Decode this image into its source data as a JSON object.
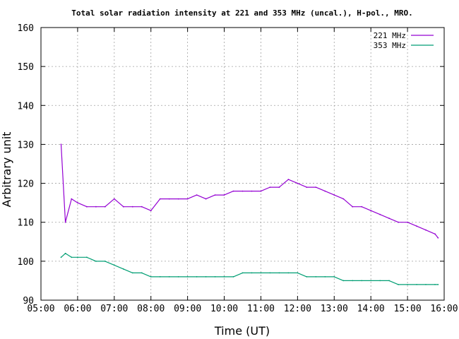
{
  "chart_data": {
    "type": "line",
    "title": "Total solar radiation intensity at 221 and 353 MHz (uncal.), H-pol., MRO.",
    "xlabel": "Time (UT)",
    "ylabel": "Arbitrary unit",
    "xlim": [
      "05:00",
      "16:00"
    ],
    "ylim": [
      90,
      160
    ],
    "x_ticks": [
      "05:00",
      "06:00",
      "07:00",
      "08:00",
      "09:00",
      "10:00",
      "11:00",
      "12:00",
      "13:00",
      "14:00",
      "15:00",
      "16:00"
    ],
    "y_ticks": [
      "90",
      "100",
      "110",
      "120",
      "130",
      "140",
      "150",
      "160"
    ],
    "grid": true,
    "legend_position": "top-right",
    "series": [
      {
        "name": "221 MHz",
        "color": "#9400d3",
        "x": [
          "05:33",
          "05:40",
          "05:50",
          "06:00",
          "06:15",
          "06:30",
          "06:45",
          "07:00",
          "07:15",
          "07:30",
          "07:45",
          "08:00",
          "08:15",
          "08:30",
          "08:45",
          "09:00",
          "09:15",
          "09:30",
          "09:45",
          "10:00",
          "10:15",
          "10:30",
          "10:45",
          "11:00",
          "11:15",
          "11:30",
          "11:45",
          "12:00",
          "12:15",
          "12:30",
          "12:45",
          "13:00",
          "13:15",
          "13:30",
          "13:45",
          "14:00",
          "14:15",
          "14:30",
          "14:45",
          "15:00",
          "15:15",
          "15:30",
          "15:45",
          "15:50"
        ],
        "y": [
          130,
          110,
          116,
          115,
          114,
          114,
          114,
          116,
          114,
          114,
          114,
          113,
          116,
          116,
          116,
          116,
          117,
          116,
          117,
          117,
          118,
          118,
          118,
          118,
          119,
          119,
          121,
          120,
          119,
          119,
          118,
          117,
          116,
          114,
          114,
          113,
          112,
          111,
          110,
          110,
          109,
          108,
          107,
          106
        ]
      },
      {
        "name": "353 MHz",
        "color": "#009e73",
        "x": [
          "05:33",
          "05:40",
          "05:50",
          "06:00",
          "06:15",
          "06:30",
          "06:45",
          "07:00",
          "07:15",
          "07:30",
          "07:45",
          "08:00",
          "08:15",
          "08:30",
          "08:45",
          "09:00",
          "09:15",
          "09:30",
          "09:45",
          "10:00",
          "10:15",
          "10:30",
          "10:45",
          "11:00",
          "11:15",
          "11:30",
          "11:45",
          "12:00",
          "12:15",
          "12:30",
          "12:45",
          "13:00",
          "13:15",
          "13:30",
          "13:45",
          "14:00",
          "14:15",
          "14:30",
          "14:45",
          "15:00",
          "15:15",
          "15:30",
          "15:45",
          "15:50"
        ],
        "y": [
          101,
          102,
          101,
          101,
          101,
          100,
          100,
          99,
          98,
          97,
          97,
          96,
          96,
          96,
          96,
          96,
          96,
          96,
          96,
          96,
          96,
          97,
          97,
          97,
          97,
          97,
          97,
          97,
          96,
          96,
          96,
          96,
          95,
          95,
          95,
          95,
          95,
          95,
          94,
          94,
          94,
          94,
          94,
          94
        ]
      }
    ]
  }
}
